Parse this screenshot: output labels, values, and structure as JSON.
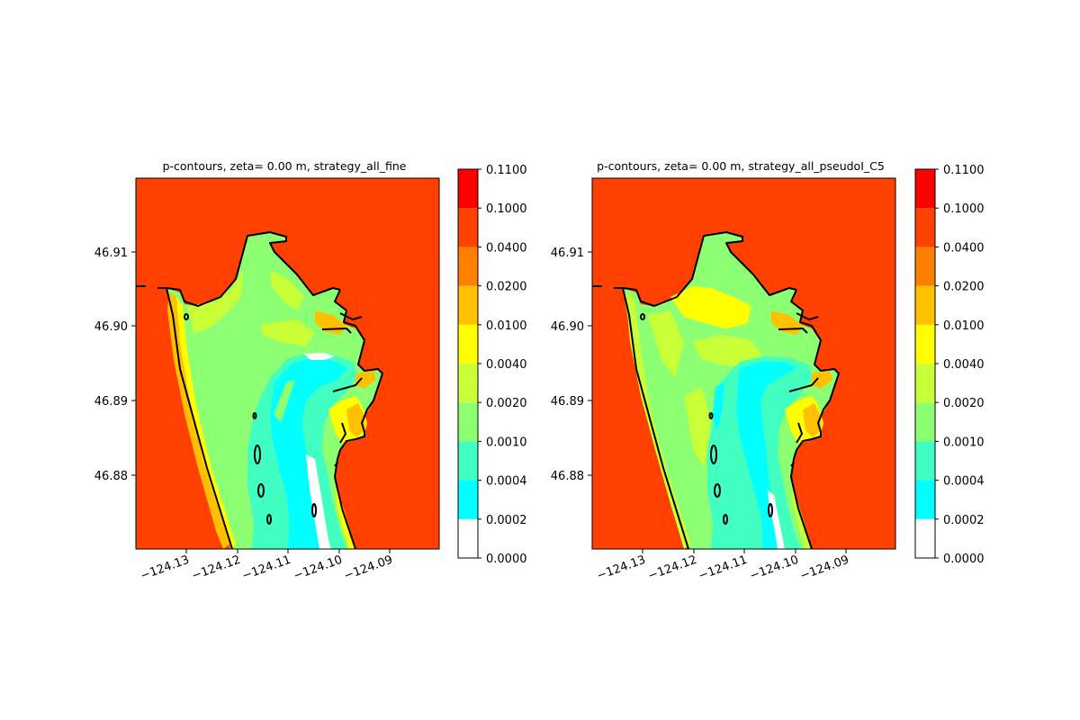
{
  "chart_data": [
    {
      "type": "heatmap",
      "title": "p-contours, zeta= 0.00 m, strategy_all_fine",
      "xlabel": "",
      "ylabel": "",
      "x_ticks": [
        -124.13,
        -124.12,
        -124.11,
        -124.1,
        -124.09
      ],
      "x_tick_labels": [
        "−124.13",
        "−124.12",
        "−124.11",
        "−124.10",
        "−124.09"
      ],
      "y_ticks": [
        46.88,
        46.89,
        46.9,
        46.91
      ],
      "y_tick_labels": [
        "46.88",
        "46.89",
        "46.90",
        "46.91"
      ],
      "xlim": [
        -124.14,
        -124.08
      ],
      "ylim": [
        46.871,
        46.92
      ],
      "colorbar": {
        "levels": [
          "0.0000",
          "0.0002",
          "0.0004",
          "0.0010",
          "0.0020",
          "0.0040",
          "0.0100",
          "0.0200",
          "0.0400",
          "0.1000",
          "0.1100"
        ],
        "colors": [
          "#ffffff",
          "#00ffff",
          "#40ffc0",
          "#8cff73",
          "#c8ff37",
          "#ffff00",
          "#ffc000",
          "#ff8000",
          "#ff4000",
          "#ff0000"
        ]
      }
    },
    {
      "type": "heatmap",
      "title": "p-contours, zeta= 0.00 m, strategy_all_pseudoI_C5",
      "xlabel": "",
      "ylabel": "",
      "x_ticks": [
        -124.13,
        -124.12,
        -124.11,
        -124.1,
        -124.09
      ],
      "x_tick_labels": [
        "−124.13",
        "−124.12",
        "−124.11",
        "−124.10",
        "−124.09"
      ],
      "y_ticks": [
        46.88,
        46.89,
        46.9,
        46.91
      ],
      "y_tick_labels": [
        "46.88",
        "46.89",
        "46.90",
        "46.91"
      ],
      "xlim": [
        -124.14,
        -124.08
      ],
      "ylim": [
        46.871,
        46.92
      ],
      "colorbar": {
        "levels": [
          "0.0000",
          "0.0002",
          "0.0004",
          "0.0010",
          "0.0020",
          "0.0040",
          "0.0100",
          "0.0200",
          "0.0400",
          "0.1000",
          "0.1100"
        ],
        "colors": [
          "#ffffff",
          "#00ffff",
          "#40ffc0",
          "#8cff73",
          "#c8ff37",
          "#ffff00",
          "#ffc000",
          "#ff8000",
          "#ff4000",
          "#ff0000"
        ]
      }
    }
  ],
  "colors": {
    "background_field": "#ff4000",
    "coastline": "#000000"
  }
}
